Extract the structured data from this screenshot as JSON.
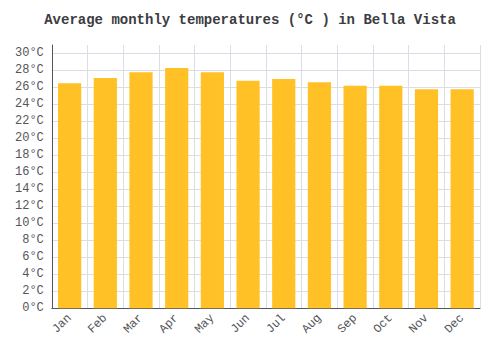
{
  "chart_data": {
    "type": "bar",
    "title": "Average monthly temperatures (°C ) in Bella Vista",
    "categories": [
      "Jan",
      "Feb",
      "Mar",
      "Apr",
      "May",
      "Jun",
      "Jul",
      "Aug",
      "Sep",
      "Oct",
      "Nov",
      "Dec"
    ],
    "values": [
      26.5,
      27.1,
      27.8,
      28.3,
      27.8,
      26.8,
      27.0,
      26.6,
      26.2,
      26.2,
      25.8,
      25.8
    ],
    "color": "#FFC125",
    "ylim": [
      0,
      31
    ],
    "yticks": [
      {
        "value": 0,
        "label": "0°C"
      },
      {
        "value": 2,
        "label": "2°C"
      },
      {
        "value": 4,
        "label": "4°C"
      },
      {
        "value": 6,
        "label": "6°C"
      },
      {
        "value": 8,
        "label": "8°C"
      },
      {
        "value": 10,
        "label": "10°C"
      },
      {
        "value": 12,
        "label": "12°C"
      },
      {
        "value": 14,
        "label": "14°C"
      },
      {
        "value": 16,
        "label": "16°C"
      },
      {
        "value": 18,
        "label": "18°C"
      },
      {
        "value": 20,
        "label": "20°C"
      },
      {
        "value": 22,
        "label": "22°C"
      },
      {
        "value": 24,
        "label": "24°C"
      },
      {
        "value": 26,
        "label": "26°C"
      },
      {
        "value": 28,
        "label": "28°C"
      },
      {
        "value": 30,
        "label": "30°C"
      }
    ],
    "grid": true
  }
}
